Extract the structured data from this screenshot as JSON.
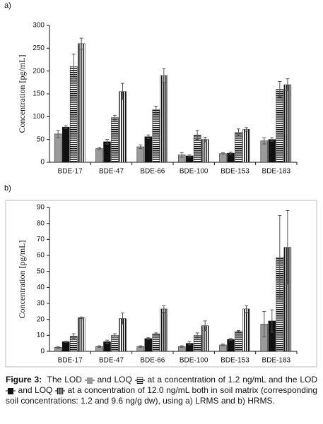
{
  "chart_data": [
    {
      "type": "bar",
      "panel": "a)",
      "ylabel": "Concentration [pg/mL]",
      "categories": [
        "BDE-17",
        "BDE-47",
        "BDE-66",
        "BDE-100",
        "BDE-153",
        "BDE-183"
      ],
      "ylim": [
        0,
        300
      ],
      "yticks": [
        0,
        50,
        100,
        150,
        200,
        250,
        300
      ],
      "frame": false,
      "series": [
        {
          "color": "#9a9a9a",
          "pattern": "solid",
          "values": [
            62,
            30,
            34,
            16,
            19,
            47
          ],
          "errors": [
            8,
            2,
            4,
            5,
            2,
            7
          ]
        },
        {
          "color": "#111111",
          "pattern": "solid",
          "values": [
            77,
            45,
            56,
            14,
            20,
            50
          ],
          "errors": [
            3,
            5,
            4,
            2,
            2,
            4
          ]
        },
        {
          "color": "#111111",
          "pattern": "horizontal",
          "values": [
            210,
            98,
            115,
            60,
            66,
            160
          ],
          "errors": [
            27,
            5,
            8,
            10,
            7,
            17
          ]
        },
        {
          "color": "#111111",
          "pattern": "vertical",
          "values": [
            260,
            155,
            190,
            50,
            72,
            170
          ],
          "errors": [
            12,
            18,
            15,
            5,
            4,
            13
          ]
        }
      ]
    },
    {
      "type": "bar",
      "panel": "b)",
      "ylabel": "Concentration [pg/mL]",
      "categories": [
        "BDE-17",
        "BDE-47",
        "BDE-66",
        "BDE-100",
        "BDE-153",
        "BDE-183"
      ],
      "ylim": [
        0,
        90
      ],
      "yticks": [
        0,
        10,
        20,
        30,
        40,
        50,
        60,
        70,
        80,
        90
      ],
      "frame": true,
      "series": [
        {
          "color": "#9a9a9a",
          "pattern": "solid",
          "values": [
            2.5,
            3,
            3,
            3,
            4,
            17
          ],
          "errors": [
            0.5,
            0.5,
            0.5,
            0.5,
            0.5,
            8
          ]
        },
        {
          "color": "#111111",
          "pattern": "solid",
          "values": [
            6,
            6,
            8,
            5,
            7.5,
            19
          ],
          "errors": [
            0.3,
            1,
            0.5,
            1,
            0.5,
            7
          ]
        },
        {
          "color": "#111111",
          "pattern": "horizontal",
          "values": [
            9.5,
            10,
            11,
            10,
            12.5,
            59
          ],
          "errors": [
            1.5,
            1,
            0.5,
            1.5,
            0.5,
            26
          ]
        },
        {
          "color": "#111111",
          "pattern": "vertical",
          "values": [
            21,
            20.5,
            26.5,
            16,
            26.5,
            65
          ],
          "errors": [
            0.5,
            3.5,
            2,
            3,
            2,
            23
          ]
        }
      ]
    }
  ],
  "caption": {
    "label": "Figure 3:",
    "parts": [
      "The LOD",
      "and LOQ",
      "at a concentration of 1.2 ng/mL and the LOD",
      "and LOQ",
      "at a concentration of 12.0 ng/mL both in soil matrix (corresponding soil concentrations: 1.2 and 9.6 ng/g dw), using a) LRMS and b) HRMS."
    ]
  }
}
